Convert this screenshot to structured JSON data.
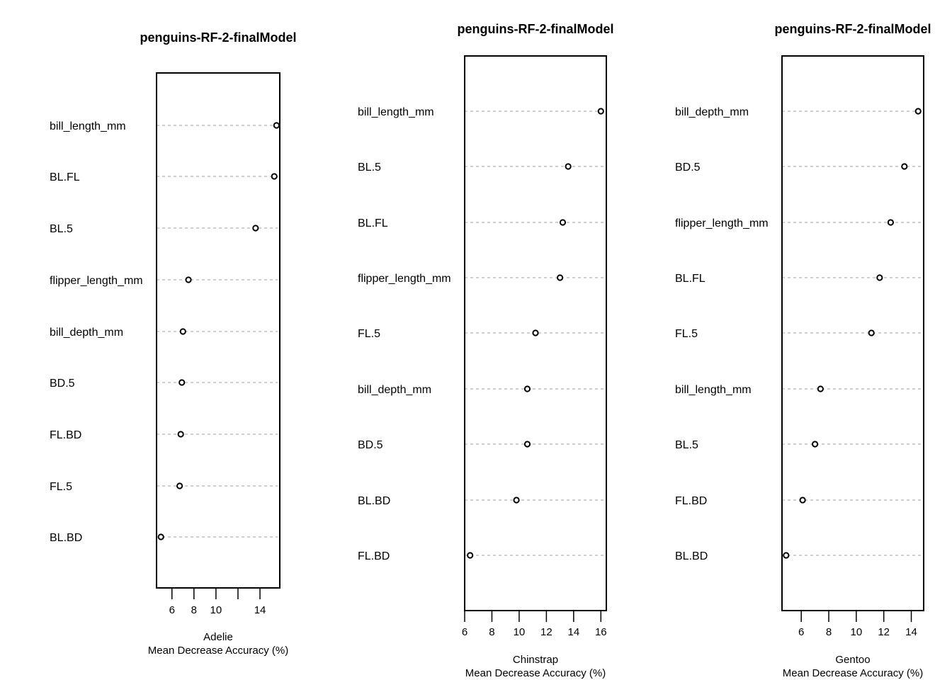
{
  "chart_data": [
    {
      "type": "scatter",
      "title": "penguins-RF-2-finalModel",
      "xlabel_top": "Adelie",
      "xlabel_bottom": "Mean Decrease Accuracy (%)",
      "xlim": [
        4.6,
        15.8
      ],
      "xticks": [
        6,
        8,
        10,
        12,
        14
      ],
      "xtick_labels": [
        "6",
        "8",
        "10",
        "",
        "14"
      ],
      "categories": [
        "bill_length_mm",
        "BL.FL",
        "BL.5",
        "flipper_length_mm",
        "bill_depth_mm",
        "BD.5",
        "FL.BD",
        "FL.5",
        "BL.BD"
      ],
      "values": [
        15.5,
        15.3,
        13.6,
        7.5,
        7.0,
        6.9,
        6.8,
        6.7,
        5.0
      ]
    },
    {
      "type": "scatter",
      "title": "penguins-RF-2-finalModel",
      "xlabel_top": "Chinstrap",
      "xlabel_bottom": "Mean Decrease Accuracy (%)",
      "xlim": [
        6.0,
        16.4
      ],
      "xticks": [
        6,
        8,
        10,
        12,
        14,
        16
      ],
      "xtick_labels": [
        "6",
        "8",
        "10",
        "12",
        "14",
        "16"
      ],
      "categories": [
        "bill_length_mm",
        "BL.5",
        "BL.FL",
        "flipper_length_mm",
        "FL.5",
        "bill_depth_mm",
        "BD.5",
        "BL.BD",
        "FL.BD"
      ],
      "values": [
        16.0,
        13.6,
        13.2,
        13.0,
        11.2,
        10.6,
        10.6,
        9.8,
        6.4
      ]
    },
    {
      "type": "scatter",
      "title": "penguins-RF-2-finalModel",
      "xlabel_top": "Gentoo",
      "xlabel_bottom": "Mean Decrease Accuracy (%)",
      "xlim": [
        4.6,
        14.9
      ],
      "xticks": [
        6,
        8,
        10,
        12,
        14
      ],
      "xtick_labels": [
        "6",
        "8",
        "10",
        "12",
        "14"
      ],
      "categories": [
        "bill_depth_mm",
        "BD.5",
        "flipper_length_mm",
        "BL.FL",
        "FL.5",
        "bill_length_mm",
        "BL.5",
        "FL.BD",
        "BL.BD"
      ],
      "values": [
        14.5,
        13.5,
        12.5,
        11.7,
        11.1,
        7.4,
        7.0,
        6.1,
        4.9
      ]
    }
  ]
}
